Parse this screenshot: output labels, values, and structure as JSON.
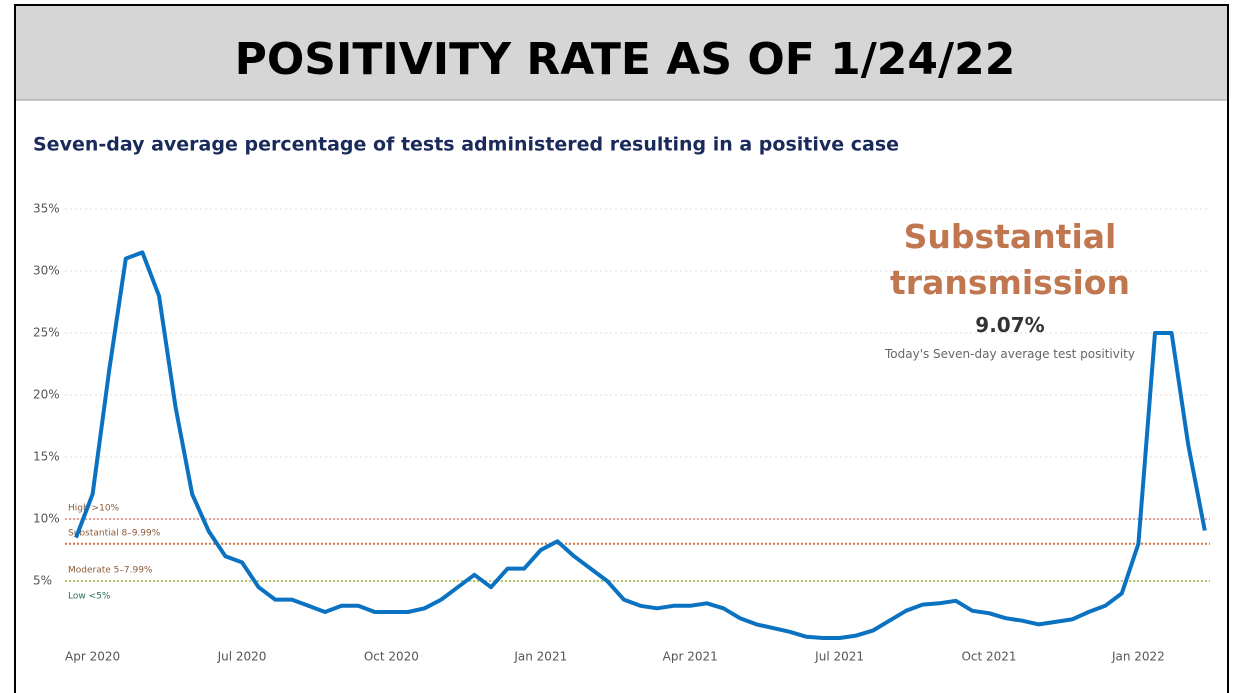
{
  "header": {
    "title": "POSITIVITY RATE AS OF 1/24/22"
  },
  "chart_data": {
    "type": "line",
    "title": "Seven-day average percentage of tests administered resulting in a positive case",
    "x": [
      null,
      "Apr 2020",
      null,
      null,
      null,
      null,
      null,
      null,
      null,
      null,
      "Jul 2020",
      null,
      null,
      null,
      null,
      null,
      null,
      null,
      null,
      "Oct 2020",
      null,
      null,
      null,
      null,
      null,
      null,
      null,
      null,
      "Jan 2021",
      null,
      null,
      null,
      null,
      null,
      null,
      null,
      null,
      "Apr 2021",
      null,
      null,
      null,
      null,
      null,
      null,
      null,
      null,
      "Jul 2021",
      null,
      null,
      null,
      null,
      null,
      null,
      null,
      null,
      "Oct 2021",
      null,
      null,
      null,
      null,
      null,
      null,
      null,
      null,
      "Jan 2022",
      null,
      null,
      null,
      null
    ],
    "values": [
      8.5,
      12,
      22,
      31,
      31.5,
      28,
      19,
      12,
      9,
      7,
      6.5,
      4.5,
      3.5,
      3.5,
      3,
      2.5,
      3,
      3,
      2.5,
      2.5,
      2.5,
      2.8,
      3.5,
      4.5,
      5.5,
      4.5,
      6,
      6,
      7.5,
      8.2,
      7,
      6,
      5,
      3.5,
      3,
      2.8,
      3,
      3,
      3.2,
      2.8,
      2,
      1.5,
      1.2,
      0.9,
      0.5,
      0.4,
      0.4,
      0.6,
      1,
      1.8,
      2.6,
      3.1,
      3.2,
      3.4,
      2.6,
      2.4,
      2,
      1.8,
      1.5,
      1.7,
      1.9,
      2.5,
      3,
      4,
      8,
      25,
      25,
      16,
      9.07
    ],
    "color": "#0a72c0",
    "ylim": [
      0,
      35
    ],
    "yticks": [
      {
        "value": 5,
        "label": "5%"
      },
      {
        "value": 10,
        "label": "10%"
      },
      {
        "value": 15,
        "label": "15%"
      },
      {
        "value": 20,
        "label": "20%"
      },
      {
        "value": 25,
        "label": "25%"
      },
      {
        "value": 30,
        "label": "30%"
      },
      {
        "value": 35,
        "label": "35%"
      }
    ],
    "grid": true,
    "thresholds": [
      {
        "label": "High >10%",
        "value": 10,
        "color": "#e8a49c"
      },
      {
        "label": "Substantial 8–9.99%",
        "value": 8,
        "color": "#d9713f"
      },
      {
        "label": "Moderate 5–7.99%",
        "value": 5,
        "color": "#b9c46a"
      },
      {
        "label": "Low <5%"
      }
    ],
    "annotation": {
      "status": "Substantial transmission",
      "kpi": "9.07%",
      "caption": "Today's Seven-day average test positivity"
    }
  }
}
